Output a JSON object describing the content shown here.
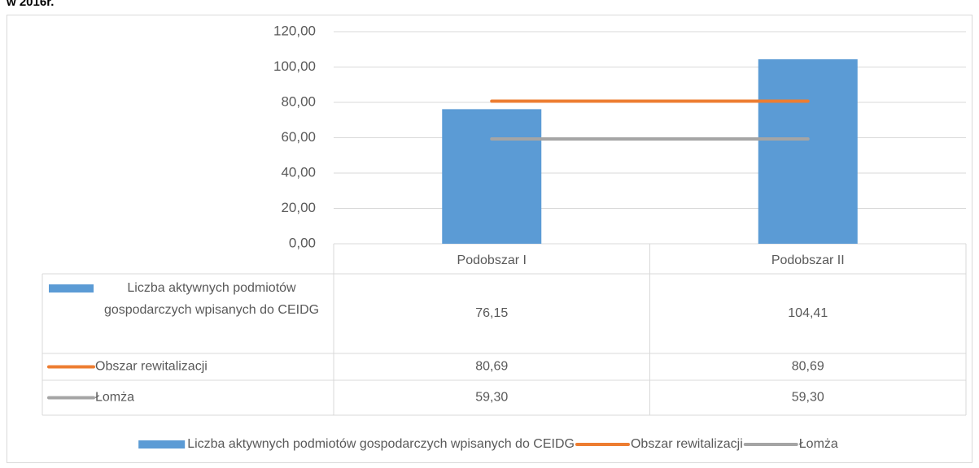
{
  "chart_data": {
    "type": "bar",
    "title": "w 2016r.",
    "categories": [
      "Podobszar I",
      "Podobszar II"
    ],
    "series": [
      {
        "name": "Liczba aktywnych podmiotów gospodarczych wpisanych do CEIDG",
        "type": "bar",
        "color": "#5b9bd5",
        "values": [
          76.15,
          104.41
        ],
        "value_labels": [
          "76,15",
          "104,41"
        ]
      },
      {
        "name": "Obszar rewitalizacji",
        "type": "line",
        "color": "#ed7d31",
        "values": [
          80.69,
          80.69
        ],
        "value_labels": [
          "80,69",
          "80,69"
        ]
      },
      {
        "name": "Łomża",
        "type": "line",
        "color": "#a5a5a5",
        "values": [
          59.3,
          59.3
        ],
        "value_labels": [
          "59,30",
          "59,30"
        ]
      }
    ],
    "ylim": [
      0,
      120
    ],
    "yticks": [
      {
        "value": 0,
        "label": "0,00"
      },
      {
        "value": 20,
        "label": "20,00"
      },
      {
        "value": 40,
        "label": "40,00"
      },
      {
        "value": 60,
        "label": "60,00"
      },
      {
        "value": 80,
        "label": "80,00"
      },
      {
        "value": 100,
        "label": "100,00"
      },
      {
        "value": 120,
        "label": "120,00"
      }
    ],
    "grid": true,
    "legend": "bottom",
    "data_table": true
  }
}
